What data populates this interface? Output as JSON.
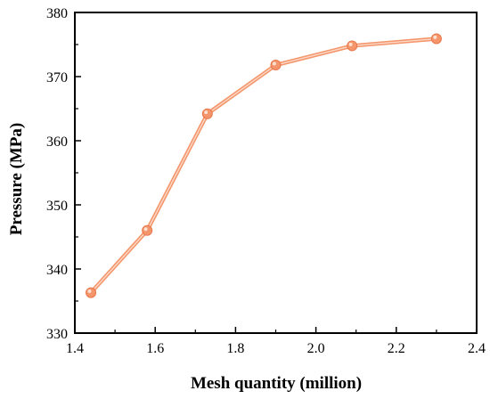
{
  "chart_data": {
    "type": "line",
    "title": "",
    "xlabel": "Mesh quantity (million)",
    "ylabel": "Pressure (MPa)",
    "xlim": [
      1.4,
      2.4
    ],
    "ylim": [
      330,
      380
    ],
    "xticks": [
      "1.4",
      "1.6",
      "1.8",
      "2.0",
      "2.2",
      "2.4"
    ],
    "yticks": [
      "330",
      "340",
      "350",
      "360",
      "370",
      "380"
    ],
    "grid": false,
    "legend": "none",
    "series": [
      {
        "color": "#F4956B",
        "marker": "circle",
        "x": [
          1.44,
          1.58,
          1.73,
          1.9,
          2.09,
          2.3
        ],
        "y": [
          336.3,
          346.0,
          364.2,
          371.8,
          374.8,
          375.9
        ]
      }
    ]
  }
}
